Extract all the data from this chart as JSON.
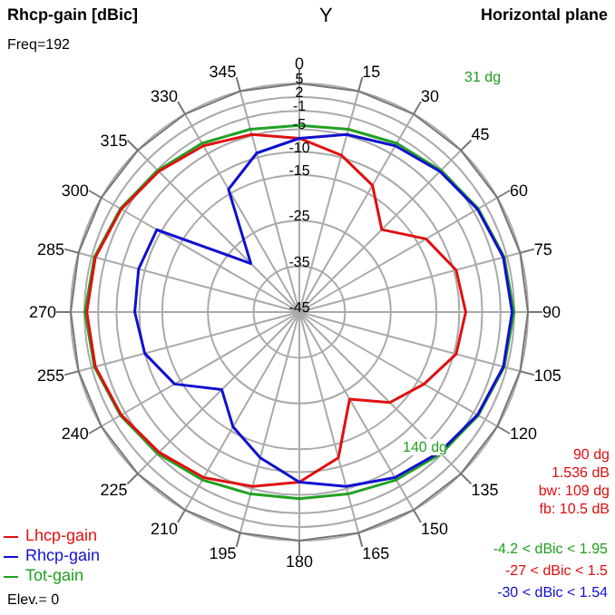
{
  "chart_data": {
    "type": "radar",
    "title": "Rhcp-gain [dBic]",
    "subtitle": "Horizontal plane",
    "categories": [
      "0",
      "15",
      "30",
      "45",
      "60",
      "75",
      "90",
      "105",
      "120",
      "135",
      "150",
      "165",
      "180",
      "195",
      "210",
      "225",
      "240",
      "255",
      "270",
      "285",
      "300",
      "315",
      "330",
      "345"
    ],
    "series": [
      {
        "name": "Tot-gain",
        "color": "#22a022",
        "values": [
          -4.2,
          -3.6,
          -2.4,
          -1.2,
          0.2,
          1.4,
          1.95,
          1.4,
          0.2,
          -1.2,
          -2.6,
          -3.8,
          -4.2,
          -3.8,
          -2.6,
          -1.2,
          0.2,
          1.4,
          1.9,
          1.4,
          0.2,
          -1.2,
          -2.4,
          -3.6
        ]
      },
      {
        "name": "Lhcp-gain",
        "color": "#e01010",
        "values": [
          -7,
          -9.5,
          -13,
          -19.5,
          -13,
          -9.5,
          -8.6,
          -9.5,
          -13.5,
          -17,
          -23,
          -12,
          -7.8,
          -5.5,
          -3.2,
          -1.6,
          0,
          1.2,
          1.5,
          1.2,
          0,
          -1.5,
          -3,
          -4.8
        ]
      },
      {
        "name": "Rhcp-gain",
        "color": "#1010d0",
        "values": [
          -7,
          -4.8,
          -3,
          -1.5,
          0,
          1.2,
          1.54,
          1.2,
          0,
          -1.6,
          -3.2,
          -5.5,
          -7.8,
          -12,
          -16,
          -21,
          -13.5,
          -10,
          -9,
          -8.6,
          -9,
          -30,
          -14,
          -9
        ]
      }
    ],
    "ylim": [
      -45,
      5
    ],
    "yticks": [
      5,
      2,
      -1,
      -5,
      -10,
      -15,
      -25,
      -35,
      -45
    ],
    "grid": true,
    "legend": "bottom left",
    "annotations": [
      "Freq=192",
      "Y",
      "31 dg",
      "140 dg",
      "90 dg",
      "1.536 dB",
      "bw: 109 dg",
      "fb: 10.5 dB",
      "-4.2 < dBic < 1.95",
      "-27 < dBic < 1.5",
      "-30 < dBic < 1.54",
      "Elev.= 0"
    ]
  }
}
